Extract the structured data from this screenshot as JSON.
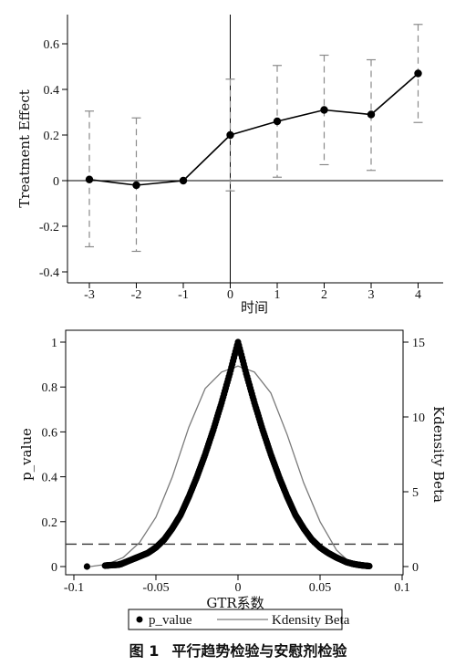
{
  "chart_data": [
    {
      "type": "line",
      "xlabel": "时间",
      "ylabel": "Treatment Effect",
      "xlim": [
        -3,
        4
      ],
      "ylim": [
        -0.4,
        0.7
      ],
      "x_ticks": [
        -3,
        -2,
        -1,
        0,
        1,
        2,
        3,
        4
      ],
      "y_ticks": [
        "-0.4",
        "-0.2",
        "0",
        "0.2",
        "0.4",
        "0.6"
      ],
      "series": [
        {
          "x": [
            -3,
            -2,
            -1,
            0,
            1,
            2,
            3,
            4
          ],
          "values": [
            0.005,
            -0.02,
            0.0,
            0.2,
            0.26,
            0.31,
            0.29,
            0.47
          ],
          "ci_low": [
            -0.29,
            -0.31,
            null,
            -0.045,
            0.015,
            0.07,
            0.045,
            0.255
          ],
          "ci_high": [
            0.305,
            0.275,
            null,
            0.445,
            0.505,
            0.55,
            0.53,
            0.685
          ]
        }
      ],
      "reference_lines": {
        "y": 0,
        "x": 0
      }
    },
    {
      "type": "scatter",
      "xlabel": "GTR系数",
      "ylabel": "p_value",
      "y2label": "Kdensity Beta",
      "xlim": [
        -0.1,
        0.1
      ],
      "ylim": [
        0,
        1
      ],
      "y2lim": [
        0,
        15
      ],
      "x_ticks": [
        "-0.1",
        "-0.05",
        "0",
        "0.05",
        "0.1"
      ],
      "y_ticks": [
        "0",
        "0.2",
        "0.4",
        "0.6",
        "0.8",
        "1"
      ],
      "y2_ticks": [
        "0",
        "5",
        "10",
        "15"
      ],
      "reference_lines": {
        "y": 0.1
      },
      "series": [
        {
          "name": "p_value",
          "kind": "scatter",
          "x": [
            -0.092,
            -0.081,
            -0.078,
            -0.073,
            -0.071,
            -0.065,
            -0.06,
            -0.055,
            -0.05,
            -0.045,
            -0.04,
            -0.035,
            -0.03,
            -0.025,
            -0.02,
            -0.015,
            -0.01,
            -0.005,
            0,
            0.005,
            0.01,
            0.015,
            0.02,
            0.025,
            0.03,
            0.035,
            0.04,
            0.045,
            0.05,
            0.055,
            0.06,
            0.066,
            0.07,
            0.073,
            0.076,
            0.08
          ],
          "values": [
            0.0,
            0.004,
            0.006,
            0.008,
            0.012,
            0.03,
            0.045,
            0.06,
            0.085,
            0.12,
            0.17,
            0.23,
            0.31,
            0.4,
            0.5,
            0.61,
            0.73,
            0.86,
            1.0,
            0.86,
            0.73,
            0.61,
            0.5,
            0.4,
            0.31,
            0.23,
            0.17,
            0.12,
            0.085,
            0.06,
            0.04,
            0.02,
            0.012,
            0.008,
            0.005,
            0.002
          ]
        },
        {
          "name": "Kdensity Beta",
          "kind": "line",
          "axis": "right",
          "x": [
            -0.09,
            -0.08,
            -0.07,
            -0.06,
            -0.05,
            -0.04,
            -0.03,
            -0.02,
            -0.01,
            0,
            0.01,
            0.02,
            0.03,
            0.04,
            0.05,
            0.06,
            0.07,
            0.075
          ],
          "values": [
            0.0,
            0.15,
            0.6,
            1.6,
            3.3,
            6.0,
            9.3,
            11.9,
            13.0,
            13.4,
            13.0,
            11.6,
            8.8,
            5.6,
            3.0,
            1.1,
            0.1,
            0.0
          ]
        }
      ]
    }
  ],
  "legend": {
    "items": [
      "p_value",
      "Kdensity Beta"
    ]
  },
  "caption": {
    "label": "图 1",
    "text": "平行趋势检验与安慰剂检验"
  },
  "colors": {
    "line": "#000000",
    "ci": "#8a8a8a",
    "density": "#7a7a7a"
  }
}
